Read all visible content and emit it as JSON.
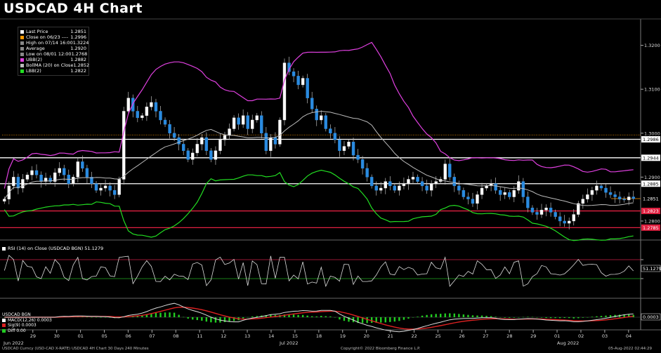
{
  "title": "USDCAD 4H Chart",
  "legend": [
    {
      "label": "Last Price",
      "value": "1.2851",
      "color": "#ffffff"
    },
    {
      "label": "Close on 06/23 ----",
      "value": "1.2996",
      "color": "#ff9900"
    },
    {
      "label": "High on 07/14 16:00",
      "value": "1.3224",
      "color": "#888888"
    },
    {
      "label": "Average",
      "value": "1.2920",
      "color": "#888888"
    },
    {
      "label": "Low on 08/01 12:00",
      "value": "1.2768",
      "color": "#888888"
    },
    {
      "label": "UBB(2)",
      "value": "1.2882",
      "color": "#e040e0"
    },
    {
      "label": "BollMA (20) on Close",
      "value": "1.2852",
      "color": "#bbbbbb"
    },
    {
      "label": "LBB(2)",
      "value": "1.2822",
      "color": "#22dd22"
    }
  ],
  "rsi_legend": "RSI (14) on Close (USDCAD BGN) 51.1279",
  "macd_legend": {
    "title": "USDCAD BGN",
    "rows": [
      {
        "label": "MACD(12,26)",
        "value": "0.0003",
        "color": "#ffffff"
      },
      {
        "label": "Sig(9)",
        "value": "0.0003",
        "color": "#dd2222"
      },
      {
        "label": "Diff",
        "value": "0.00",
        "color": "#22cc22"
      }
    ]
  },
  "footer": {
    "left": "USDCAD Curncy (USD-CAD X-RATE) USDCAD 4H Chart 30 Days 240 Minutes",
    "center": "Copyright© 2022 Bloomberg Finance L.P.",
    "right": "05-Aug-2022 02:44:29"
  },
  "chart_data": {
    "type": "candlestick",
    "title": "USDCAD 4H Chart",
    "ylim": [
      1.276,
      1.326
    ],
    "y_ticks": [
      "1.3200",
      "1.3100",
      "1.3000",
      "1.2900",
      "1.2800"
    ],
    "x_ticks": [
      "29",
      "30",
      "01",
      "05",
      "06",
      "07",
      "08",
      "11",
      "12",
      "13",
      "14",
      "15",
      "18",
      "19",
      "20",
      "21",
      "22",
      "25",
      "26",
      "27",
      "28",
      "29",
      "01",
      "02",
      "03",
      "04"
    ],
    "x_month_labels": [
      "Jun 2022",
      "Jul 2022",
      "Aug 2022"
    ],
    "price_tags": [
      {
        "value": "1.2986",
        "kind": "white-line"
      },
      {
        "value": "1.2944",
        "kind": "white-line"
      },
      {
        "value": "1.2885",
        "kind": "white-line"
      },
      {
        "value": "1.2851",
        "kind": "last"
      },
      {
        "value": "1.2823",
        "kind": "red-line"
      },
      {
        "value": "1.2785",
        "kind": "red-line"
      }
    ],
    "close_line": 1.2996,
    "closes": [
      1.285,
      1.288,
      1.29,
      1.2875,
      1.2895,
      1.2905,
      1.2915,
      1.2905,
      1.289,
      1.2898,
      1.289,
      1.291,
      1.292,
      1.2905,
      1.2885,
      1.29,
      1.2935,
      1.292,
      1.29,
      1.2885,
      1.287,
      1.2875,
      1.288,
      1.287,
      1.286,
      1.2895,
      1.305,
      1.308,
      1.305,
      1.3035,
      1.304,
      1.306,
      1.307,
      1.305,
      1.303,
      1.302,
      1.3,
      1.299,
      1.2975,
      1.296,
      1.294,
      1.2955,
      1.2975,
      1.299,
      1.296,
      1.294,
      1.296,
      1.2985,
      1.2995,
      1.301,
      1.3035,
      1.302,
      1.304,
      1.301,
      1.303,
      1.304,
      1.3,
      1.296,
      1.299,
      1.2975,
      1.303,
      1.316,
      1.314,
      1.313,
      1.311,
      1.3125,
      1.308,
      1.3055,
      1.303,
      1.304,
      1.301,
      1.3,
      1.2985,
      1.296,
      1.297,
      1.298,
      1.295,
      1.294,
      1.292,
      1.29,
      1.288,
      1.287,
      1.2875,
      1.289,
      1.288,
      1.287,
      1.288,
      1.2885,
      1.2895,
      1.29,
      1.289,
      1.288,
      1.287,
      1.2885,
      1.289,
      1.2895,
      1.293,
      1.29,
      1.288,
      1.287,
      1.2855,
      1.285,
      1.284,
      1.286,
      1.2875,
      1.288,
      1.2885,
      1.287,
      1.286,
      1.2865,
      1.2855,
      1.287,
      1.289,
      1.2855,
      1.283,
      1.282,
      1.2815,
      1.2825,
      1.283,
      1.282,
      1.281,
      1.28,
      1.2795,
      1.28,
      1.2815,
      1.284,
      1.285,
      1.286,
      1.287,
      1.288,
      1.2875,
      1.2865,
      1.286,
      1.2855,
      1.285,
      1.2848,
      1.2855,
      1.2851
    ],
    "rsi": {
      "value": "51.1279",
      "ylim": [
        0,
        100
      ],
      "bands": [
        70,
        30
      ]
    },
    "macd": {
      "macd": "0.0003",
      "signal": "0.0003",
      "diff": "0.00"
    }
  }
}
